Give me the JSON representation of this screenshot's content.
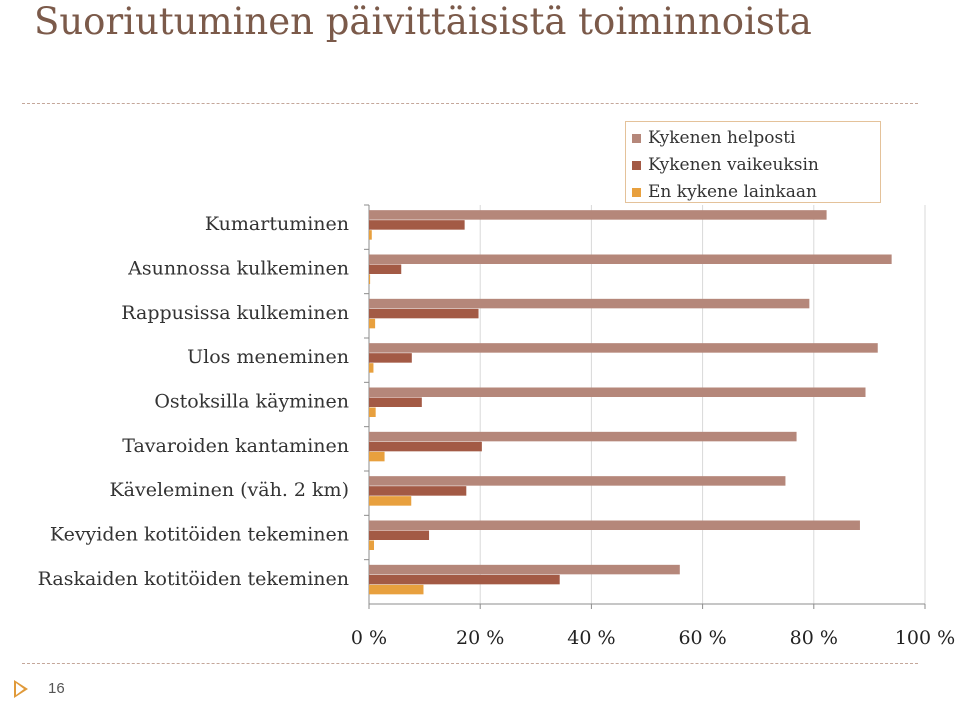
{
  "slide": {
    "title": "Suoriutuminen päivittäisistä toiminnoista",
    "page_number": "16"
  },
  "colors": {
    "title": "#7b5a4a",
    "accent": "#e09a3a",
    "grid": "#d9d9d9"
  },
  "chart_data": {
    "type": "bar",
    "orientation": "horizontal",
    "title": "",
    "xlabel": "",
    "ylabel": "",
    "xlim": [
      0,
      100
    ],
    "x_ticks": [
      "0 %",
      "20 %",
      "40 %",
      "60 %",
      "80 %",
      "100 %"
    ],
    "grid": true,
    "legend_position": "top-right",
    "categories": [
      "Kumartuminen",
      "Asunnossa kulkeminen",
      "Rappusissa kulkeminen",
      "Ulos meneminen",
      "Ostoksilla käyminen",
      "Tavaroiden kantaminen",
      "Käveleminen (väh. 2 km)",
      "Kevyiden kotitöiden tekeminen",
      "Raskaiden kotitöiden tekeminen"
    ],
    "series": [
      {
        "name": "Kykenen helposti",
        "color": "#b5877a",
        "values": [
          82.3,
          94,
          79.2,
          91.5,
          89.3,
          76.9,
          74.9,
          88.3,
          55.9
        ]
      },
      {
        "name": "Kykenen vaikeuksin",
        "color": "#a35a45",
        "values": [
          17.2,
          5.8,
          19.7,
          7.7,
          9.5,
          20.3,
          17.5,
          10.8,
          34.3
        ]
      },
      {
        "name": "En kykene lainkaan",
        "color": "#e8a03e",
        "values": [
          0.5,
          0.2,
          1.1,
          0.8,
          1.2,
          2.8,
          7.6,
          0.9,
          9.8
        ]
      }
    ]
  }
}
